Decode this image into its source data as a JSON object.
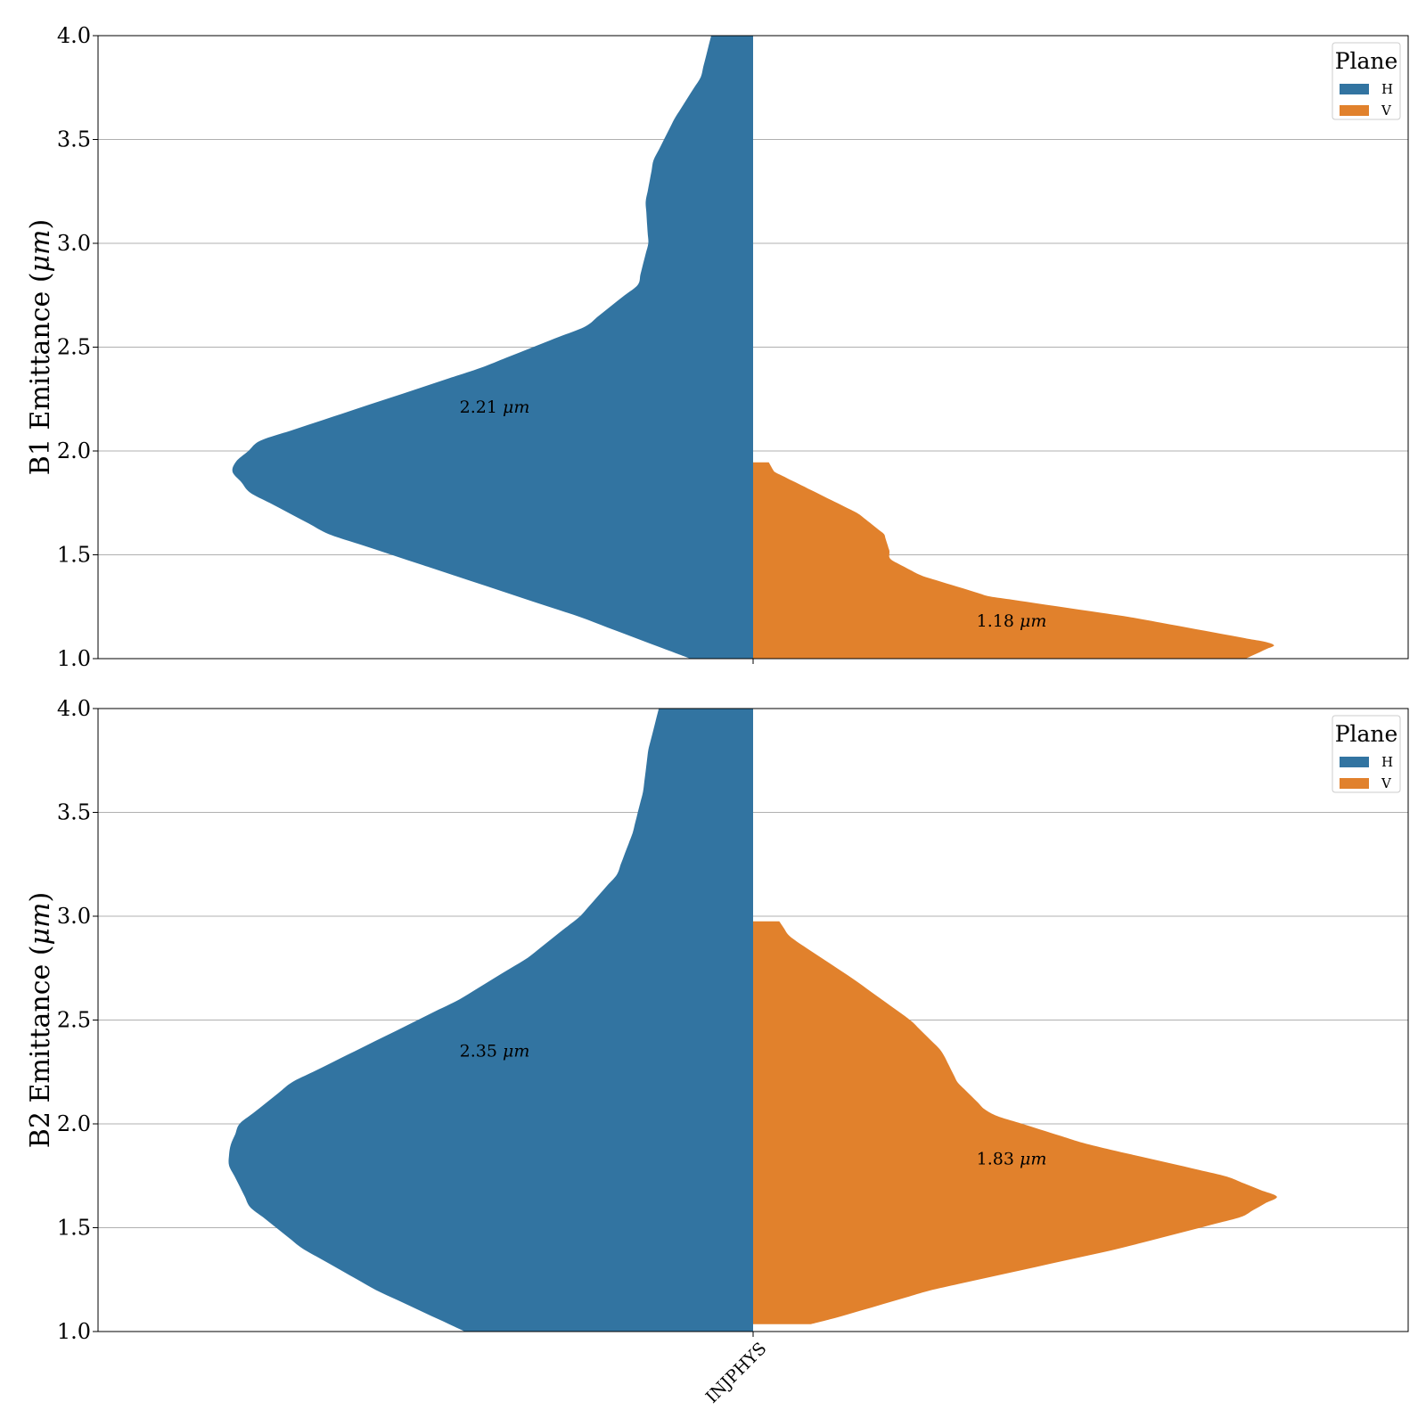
{
  "colors": {
    "H": "#3274a1",
    "V": "#e1812c",
    "grid": "#b0b0b0",
    "axis": "#000000"
  },
  "chart_data": [
    {
      "type": "violin",
      "split": true,
      "category": "INJPHYS",
      "ylabel_prefix": "B1 Emittance (",
      "ylabel_unit": "μm",
      "ylabel_suffix": ")",
      "ylim": [
        1.0,
        4.0
      ],
      "yticks": [
        "1.0",
        "1.5",
        "2.0",
        "2.5",
        "3.0",
        "3.5",
        "4.0"
      ],
      "grid": "horizontal",
      "legend": {
        "title": "Plane",
        "position": "top-right",
        "entries": [
          "H",
          "V"
        ]
      },
      "series": [
        {
          "name": "H",
          "side": "left",
          "annotation": "2.21 μm",
          "annotation_value": 2.21,
          "density_y": [
            1.0,
            1.2,
            1.4,
            1.6,
            1.8,
            1.92,
            2.05,
            2.2,
            2.4,
            2.6,
            2.8,
            3.0,
            3.2,
            3.4,
            3.6,
            3.8,
            4.0
          ],
          "density": [
            0.12,
            0.33,
            0.57,
            0.81,
            0.96,
            1.0,
            0.94,
            0.76,
            0.52,
            0.32,
            0.22,
            0.2,
            0.205,
            0.19,
            0.15,
            0.1,
            0.08
          ]
        },
        {
          "name": "V",
          "side": "right",
          "annotation": "1.18 μm",
          "annotation_value": 1.18,
          "density_y": [
            1.0,
            1.07,
            1.2,
            1.3,
            1.4,
            1.48,
            1.52,
            1.6,
            1.7,
            1.8,
            1.9,
            1.945
          ],
          "density": [
            0.94,
            1.0,
            0.72,
            0.45,
            0.32,
            0.26,
            0.26,
            0.25,
            0.2,
            0.12,
            0.04,
            0.03
          ]
        }
      ]
    },
    {
      "type": "violin",
      "split": true,
      "category": "INJPHYS",
      "ylabel_prefix": "B2 Emittance (",
      "ylabel_unit": "μm",
      "ylabel_suffix": ")",
      "ylim": [
        1.0,
        4.0
      ],
      "yticks": [
        "1.0",
        "1.5",
        "2.0",
        "2.5",
        "3.0",
        "3.5",
        "4.0"
      ],
      "grid": "horizontal",
      "legend": {
        "title": "Plane",
        "position": "top-right",
        "entries": [
          "H",
          "V"
        ]
      },
      "series": [
        {
          "name": "H",
          "side": "left",
          "annotation": "2.35 μm",
          "annotation_value": 2.35,
          "density_y": [
            1.0,
            1.2,
            1.4,
            1.6,
            1.8,
            1.88,
            2.0,
            2.2,
            2.4,
            2.6,
            2.8,
            3.0,
            3.2,
            3.4,
            3.6,
            3.8,
            4.0
          ],
          "density": [
            0.55,
            0.72,
            0.86,
            0.96,
            1.0,
            1.0,
            0.98,
            0.88,
            0.72,
            0.56,
            0.43,
            0.33,
            0.26,
            0.23,
            0.21,
            0.2,
            0.18
          ]
        },
        {
          "name": "V",
          "side": "right",
          "annotation": "1.83 μm",
          "annotation_value": 1.83,
          "density_y": [
            1.035,
            1.06,
            1.2,
            1.4,
            1.55,
            1.65,
            1.75,
            1.9,
            2.05,
            2.2,
            2.35,
            2.5,
            2.7,
            2.9,
            2.975
          ],
          "density": [
            0.11,
            0.15,
            0.34,
            0.7,
            0.93,
            1.0,
            0.9,
            0.64,
            0.45,
            0.39,
            0.36,
            0.3,
            0.19,
            0.07,
            0.05
          ]
        }
      ]
    }
  ]
}
